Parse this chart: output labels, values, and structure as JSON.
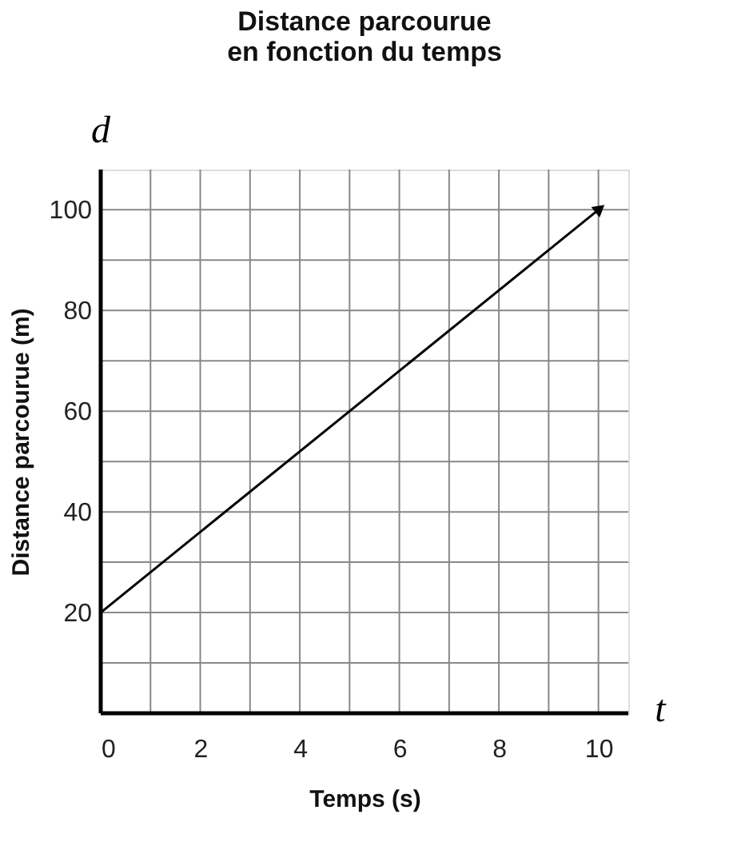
{
  "chart_data": {
    "type": "line",
    "title": "Distance parcourue\nen fonction du temps",
    "xlabel": "Temps (s)",
    "ylabel": "Distance parcourue (m)",
    "annotations": [
      "d",
      "t"
    ],
    "x": [
      0,
      10
    ],
    "values": [
      20,
      100
    ],
    "color": "#000000",
    "xlim": [
      0,
      10.6
    ],
    "ylim": [
      0,
      108
    ],
    "xticks": [
      0,
      {
        "value": 1,
        "label": null
      },
      2,
      {
        "value": 3,
        "label": null
      },
      4,
      {
        "value": 5,
        "label": null
      },
      6,
      {
        "value": 7,
        "label": null
      },
      8,
      {
        "value": 9,
        "label": null
      },
      10
    ],
    "yticks": [
      {
        "value": 10,
        "label": null
      },
      20,
      {
        "value": 30,
        "label": null
      },
      40,
      {
        "value": 50,
        "label": null
      },
      60,
      {
        "value": 70,
        "label": null
      },
      80,
      {
        "value": 90,
        "label": null
      },
      100
    ],
    "grid": true,
    "line_style": "solid"
  }
}
